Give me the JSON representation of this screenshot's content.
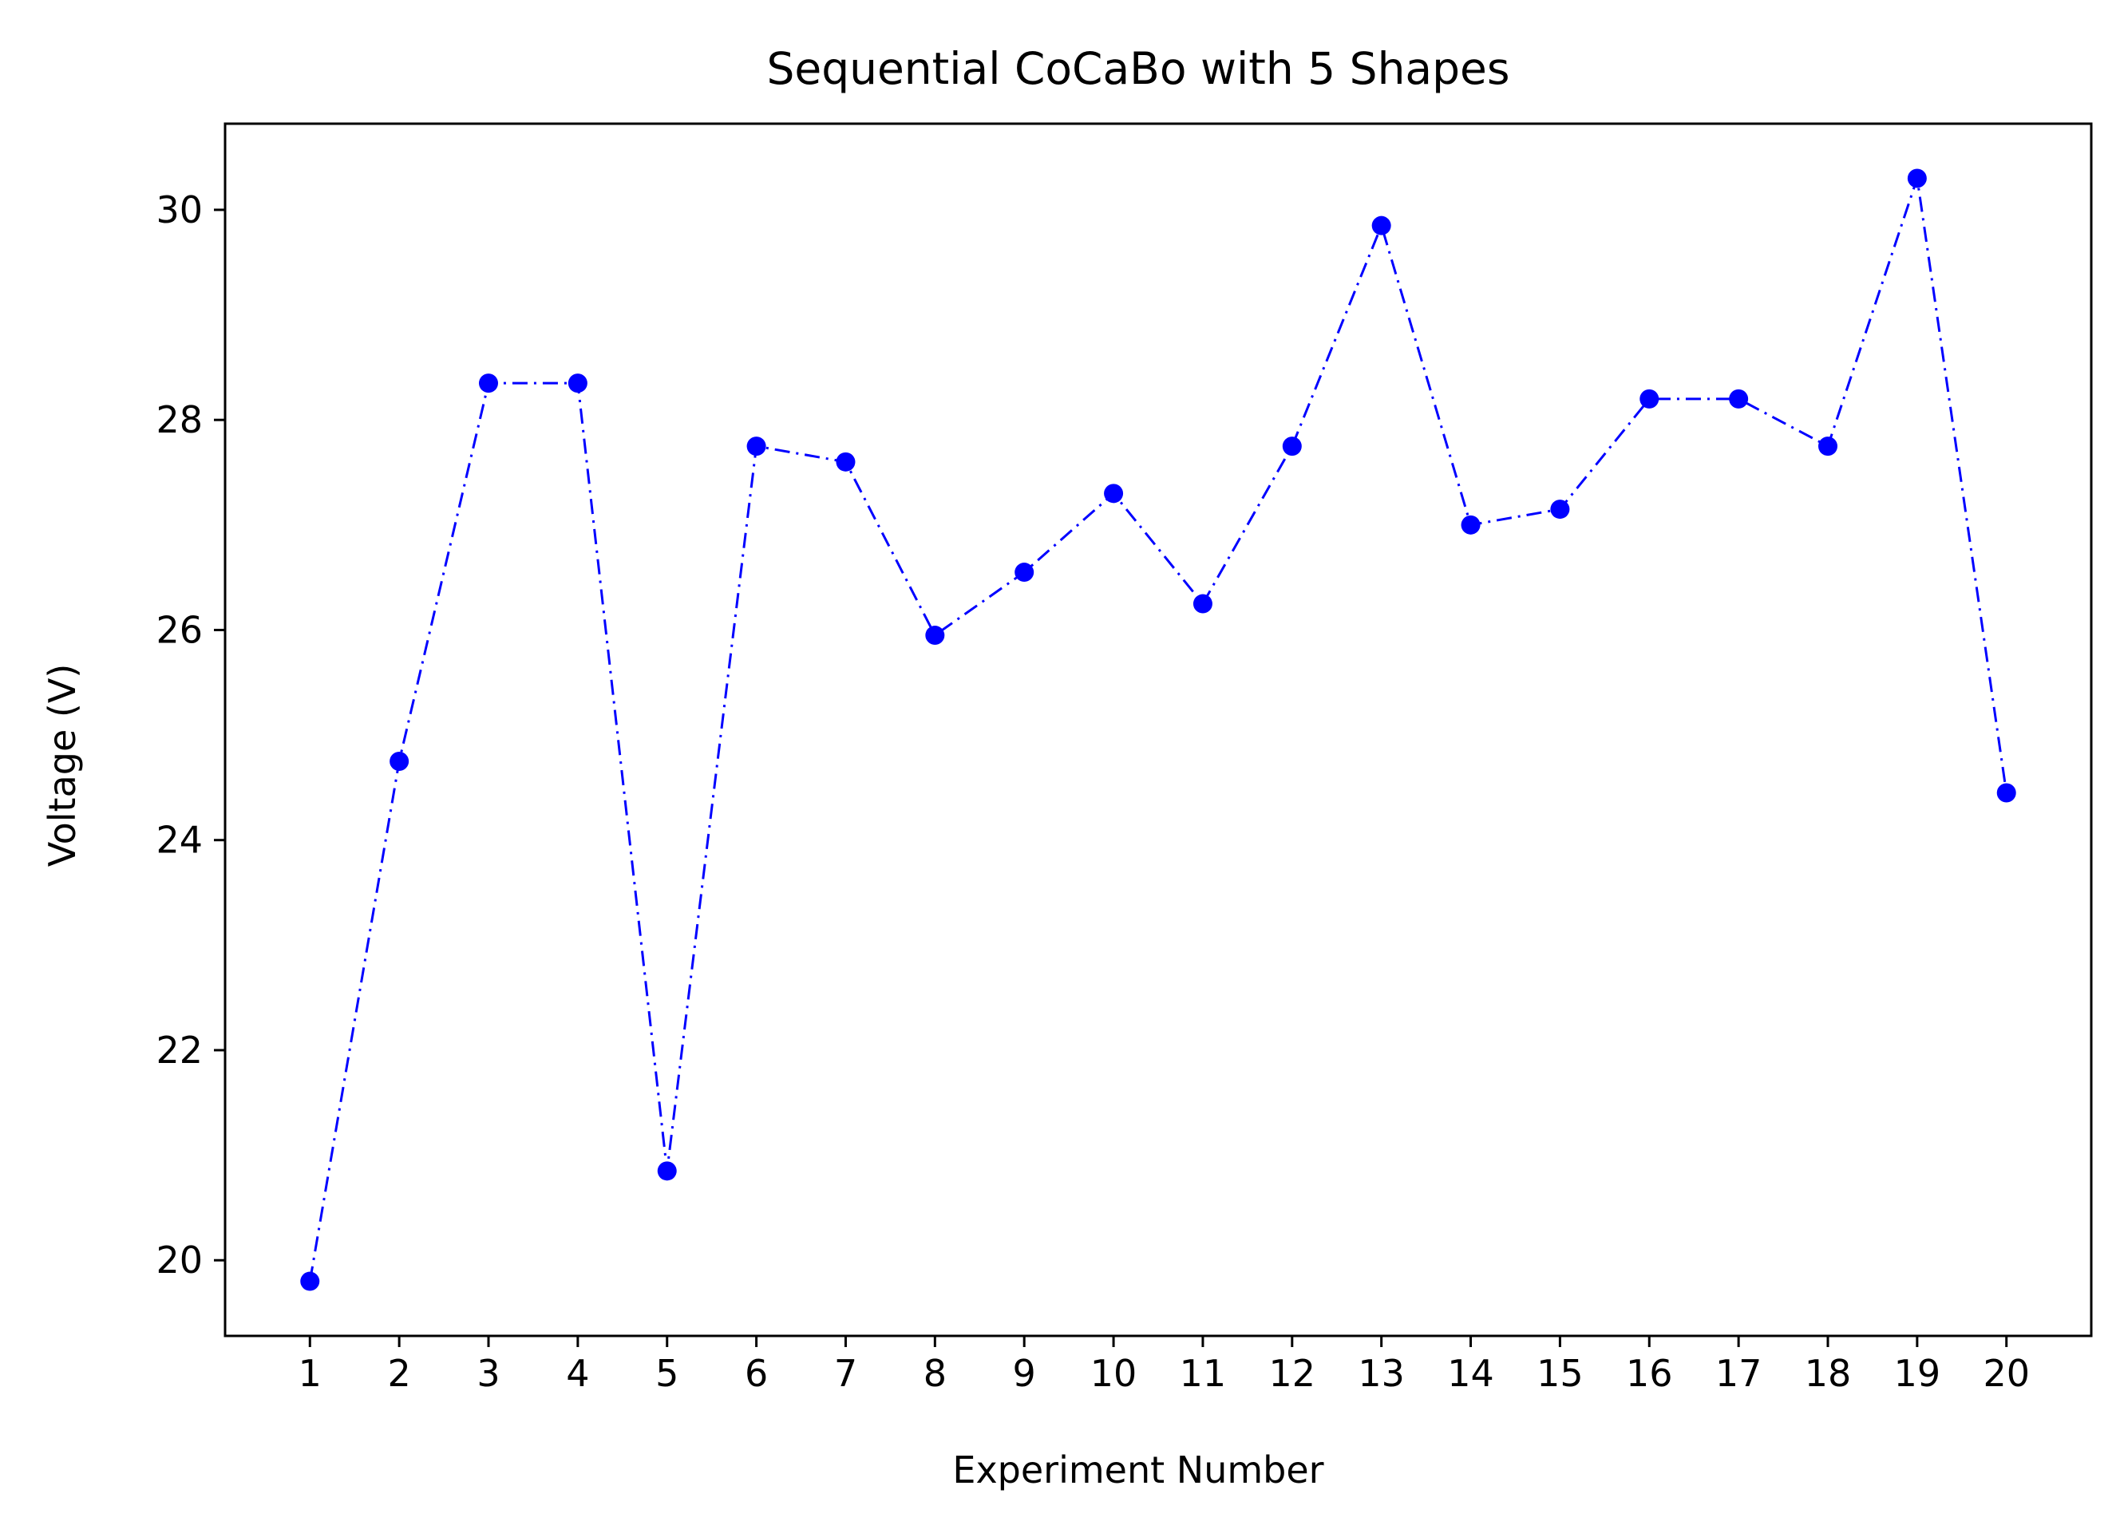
{
  "chart_data": {
    "type": "line",
    "title": "Sequential CoCaBo with 5 Shapes",
    "xlabel": "Experiment Number",
    "ylabel": "Voltage (V)",
    "x": [
      1,
      2,
      3,
      4,
      5,
      6,
      7,
      8,
      9,
      10,
      11,
      12,
      13,
      14,
      15,
      16,
      17,
      18,
      19,
      20
    ],
    "series": [
      {
        "values": [
          19.8,
          24.75,
          28.35,
          28.35,
          20.85,
          27.75,
          27.6,
          25.95,
          26.55,
          27.3,
          26.25,
          27.75,
          29.85,
          27.0,
          27.15,
          28.2,
          28.2,
          27.75,
          30.3,
          24.45
        ],
        "color": "#0000ff",
        "line_style": "dash-dot",
        "marker": "circle"
      }
    ],
    "xticks": [
      "1",
      "2",
      "3",
      "4",
      "5",
      "6",
      "7",
      "8",
      "9",
      "10",
      "11",
      "12",
      "13",
      "14",
      "15",
      "16",
      "17",
      "18",
      "19",
      "20"
    ],
    "yticks": [
      "20",
      "22",
      "24",
      "26",
      "28",
      "30"
    ],
    "xlim": [
      0.05,
      20.95
    ],
    "ylim": [
      19.28,
      30.82
    ],
    "grid": false,
    "legend": "none"
  }
}
